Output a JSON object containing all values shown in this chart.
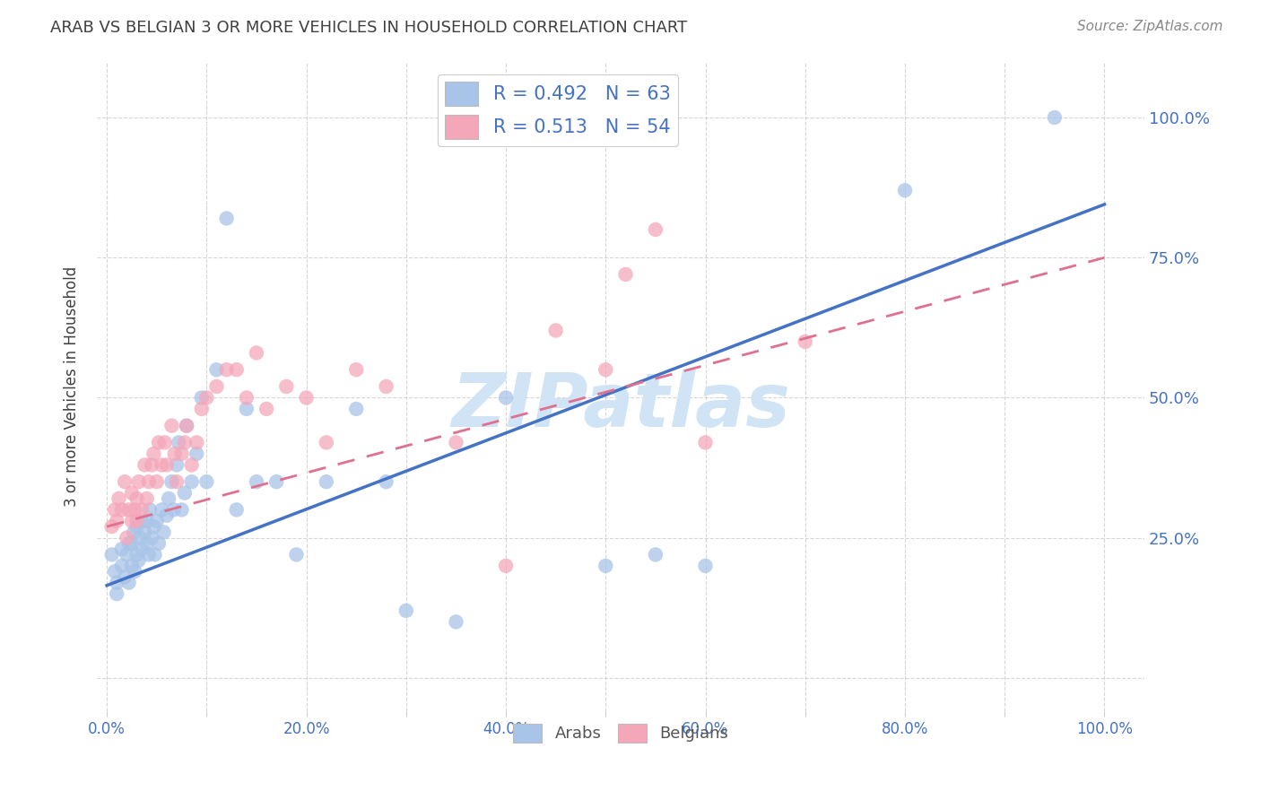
{
  "title": "ARAB VS BELGIAN 3 OR MORE VEHICLES IN HOUSEHOLD CORRELATION CHART",
  "source": "Source: ZipAtlas.com",
  "ylabel": "3 or more Vehicles in Household",
  "x_tick_labels": [
    "0.0%",
    "",
    "20.0%",
    "",
    "40.0%",
    "",
    "60.0%",
    "",
    "80.0%",
    "",
    "100.0%"
  ],
  "y_tick_labels_right": [
    "100.0%",
    "75.0%",
    "50.0%",
    "25.0%"
  ],
  "x_tick_positions": [
    0.0,
    0.1,
    0.2,
    0.3,
    0.4,
    0.5,
    0.6,
    0.7,
    0.8,
    0.9,
    1.0
  ],
  "y_tick_positions": [
    0.0,
    0.25,
    0.5,
    0.75,
    1.0
  ],
  "arab_R": 0.492,
  "arab_N": 63,
  "belgian_R": 0.513,
  "belgian_N": 54,
  "arab_color": "#a8c4e8",
  "belgian_color": "#f4a7b9",
  "arab_line_color": "#4472c4",
  "belgian_line_color": "#e07090",
  "watermark": "ZIPatlas",
  "watermark_color": "#d0e4f5",
  "background_color": "#ffffff",
  "grid_color": "#cccccc",
  "title_color": "#404040",
  "tick_label_color": "#4472c4",
  "arab_line_intercept": 0.165,
  "arab_line_slope": 0.68,
  "belgian_line_intercept": 0.27,
  "belgian_line_slope": 0.48,
  "arab_scatter_x": [
    0.005,
    0.008,
    0.01,
    0.01,
    0.015,
    0.015,
    0.018,
    0.02,
    0.022,
    0.022,
    0.025,
    0.025,
    0.027,
    0.028,
    0.03,
    0.03,
    0.032,
    0.033,
    0.035,
    0.035,
    0.038,
    0.04,
    0.04,
    0.042,
    0.043,
    0.045,
    0.047,
    0.048,
    0.05,
    0.052,
    0.055,
    0.057,
    0.06,
    0.062,
    0.065,
    0.067,
    0.07,
    0.072,
    0.075,
    0.078,
    0.08,
    0.085,
    0.09,
    0.095,
    0.1,
    0.11,
    0.12,
    0.13,
    0.14,
    0.15,
    0.17,
    0.19,
    0.22,
    0.25,
    0.28,
    0.3,
    0.35,
    0.4,
    0.5,
    0.55,
    0.6,
    0.8,
    0.95
  ],
  "arab_scatter_y": [
    0.22,
    0.19,
    0.15,
    0.17,
    0.2,
    0.23,
    0.18,
    0.22,
    0.17,
    0.24,
    0.2,
    0.24,
    0.26,
    0.19,
    0.22,
    0.27,
    0.21,
    0.25,
    0.23,
    0.28,
    0.26,
    0.24,
    0.28,
    0.22,
    0.3,
    0.25,
    0.27,
    0.22,
    0.28,
    0.24,
    0.3,
    0.26,
    0.29,
    0.32,
    0.35,
    0.3,
    0.38,
    0.42,
    0.3,
    0.33,
    0.45,
    0.35,
    0.4,
    0.5,
    0.35,
    0.55,
    0.82,
    0.3,
    0.48,
    0.35,
    0.35,
    0.22,
    0.35,
    0.48,
    0.35,
    0.12,
    0.1,
    0.5,
    0.2,
    0.22,
    0.2,
    0.87,
    1.0
  ],
  "belgian_scatter_x": [
    0.005,
    0.008,
    0.01,
    0.012,
    0.015,
    0.018,
    0.02,
    0.022,
    0.025,
    0.025,
    0.028,
    0.03,
    0.03,
    0.032,
    0.035,
    0.038,
    0.04,
    0.042,
    0.045,
    0.047,
    0.05,
    0.052,
    0.055,
    0.058,
    0.06,
    0.065,
    0.068,
    0.07,
    0.075,
    0.078,
    0.08,
    0.085,
    0.09,
    0.095,
    0.1,
    0.11,
    0.12,
    0.13,
    0.14,
    0.15,
    0.16,
    0.18,
    0.2,
    0.22,
    0.25,
    0.28,
    0.35,
    0.4,
    0.45,
    0.5,
    0.52,
    0.55,
    0.6,
    0.7
  ],
  "belgian_scatter_y": [
    0.27,
    0.3,
    0.28,
    0.32,
    0.3,
    0.35,
    0.25,
    0.3,
    0.28,
    0.33,
    0.3,
    0.28,
    0.32,
    0.35,
    0.3,
    0.38,
    0.32,
    0.35,
    0.38,
    0.4,
    0.35,
    0.42,
    0.38,
    0.42,
    0.38,
    0.45,
    0.4,
    0.35,
    0.4,
    0.42,
    0.45,
    0.38,
    0.42,
    0.48,
    0.5,
    0.52,
    0.55,
    0.55,
    0.5,
    0.58,
    0.48,
    0.52,
    0.5,
    0.42,
    0.55,
    0.52,
    0.42,
    0.2,
    0.62,
    0.55,
    0.72,
    0.8,
    0.42,
    0.6
  ]
}
